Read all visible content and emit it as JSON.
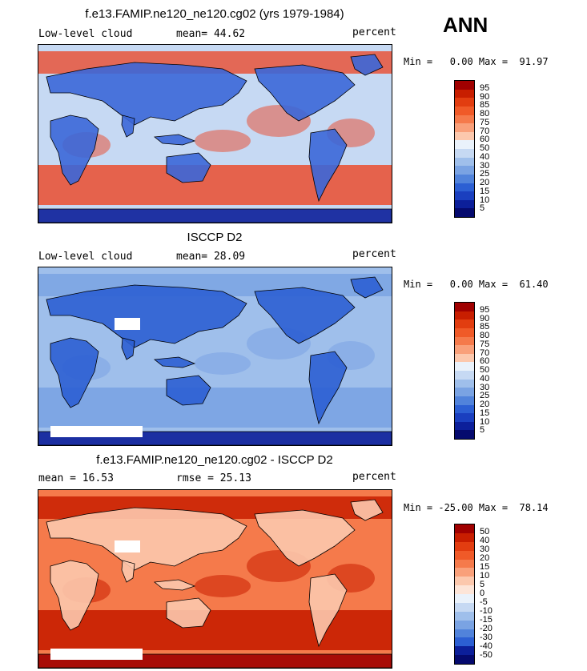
{
  "season": "ANN",
  "panels": [
    {
      "title": "f.e13.FAMIP.ne120_ne120.cg02 (yrs 1979-1984)",
      "left_label": "Low-level cloud",
      "mid_label": "mean=  44.62",
      "right_label": "percent",
      "minmax": "Min =   0.00 Max =  91.97",
      "colorbar": {
        "labels": [
          "95",
          "90",
          "85",
          "80",
          "75",
          "70",
          "60",
          "50",
          "40",
          "30",
          "25",
          "20",
          "15",
          "10",
          "5"
        ],
        "colors": [
          "#a00000",
          "#c81e00",
          "#e23d10",
          "#f05a28",
          "#f57a4b",
          "#f9a07a",
          "#fcc8ad",
          "#eaf2fb",
          "#c6d9f3",
          "#9fbfeb",
          "#7aa3e3",
          "#5183db",
          "#2c5fd3",
          "#1a3fbf",
          "#0c1f9a",
          "#050a6e"
        ]
      },
      "map_colors": {
        "ocean_base": "#c6d9f3",
        "band_high": "#e8543a",
        "land_low": "#3b67d8",
        "pole": "#0c1f9a"
      }
    },
    {
      "title": "ISCCP D2",
      "left_label": "Low-level cloud",
      "mid_label": "mean=  28.09",
      "right_label": "percent",
      "minmax": "Min =   0.00 Max =  61.40",
      "colorbar": {
        "labels": [
          "95",
          "90",
          "85",
          "80",
          "75",
          "70",
          "60",
          "50",
          "40",
          "30",
          "25",
          "20",
          "15",
          "10",
          "5"
        ],
        "colors": [
          "#a00000",
          "#c81e00",
          "#e23d10",
          "#f05a28",
          "#f57a4b",
          "#f9a07a",
          "#fcc8ad",
          "#eaf2fb",
          "#c6d9f3",
          "#9fbfeb",
          "#7aa3e3",
          "#5183db",
          "#2c5fd3",
          "#1a3fbf",
          "#0c1f9a",
          "#050a6e"
        ]
      },
      "map_colors": {
        "ocean_base": "#9fbfeb",
        "band_high": "#7aa3e3",
        "land_low": "#2c5fd3",
        "pole": "#0c1f9a"
      }
    },
    {
      "title": "f.e13.FAMIP.ne120_ne120.cg02 - ISCCP D2",
      "left_label": "mean =  16.53",
      "mid_label": "rmse =  25.13",
      "right_label": "percent",
      "minmax": "Min = -25.00 Max =  78.14",
      "colorbar": {
        "labels": [
          "50",
          "40",
          "30",
          "20",
          "15",
          "10",
          "5",
          "0",
          "-5",
          "-10",
          "-15",
          "-20",
          "-30",
          "-40",
          "-50"
        ],
        "colors": [
          "#a00000",
          "#c81e00",
          "#e23d10",
          "#f05a28",
          "#f57a4b",
          "#f9a07a",
          "#fcc8ad",
          "#fde5d8",
          "#eaf2fb",
          "#c6d9f3",
          "#9fbfeb",
          "#7aa3e3",
          "#5183db",
          "#2c5fd3",
          "#0c1f9a",
          "#050a6e"
        ]
      },
      "map_colors": {
        "ocean_base": "#f57a4b",
        "band_high": "#c81e00",
        "land_low": "#fcc8ad",
        "pole": "#a00000"
      }
    }
  ]
}
